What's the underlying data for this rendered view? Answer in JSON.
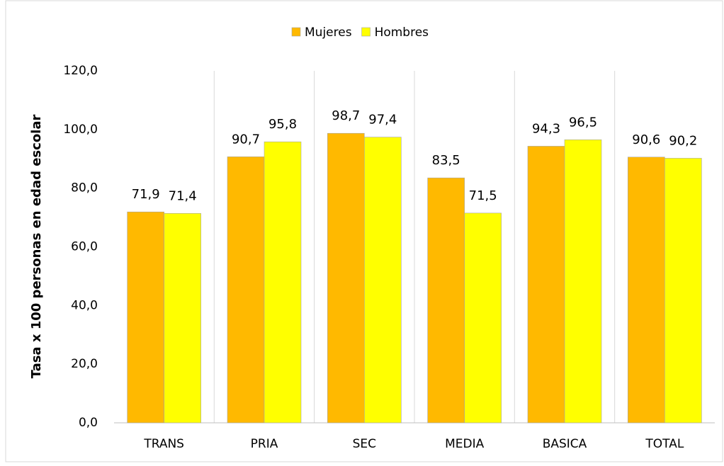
{
  "chart_data": {
    "type": "bar",
    "y_label": "Tasa x 100 personas en edad escolar",
    "categories": [
      "TRANS",
      "PRIA",
      "SEC",
      "MEDIA",
      "BASICA",
      "TOTAL"
    ],
    "series": [
      {
        "name": "Mujeres",
        "color": "#FFB900",
        "values": [
          71.9,
          90.7,
          98.7,
          83.5,
          94.3,
          90.6
        ],
        "value_labels": [
          "71,9",
          "90,7",
          "98,7",
          "83,5",
          "94,3",
          "90,6"
        ]
      },
      {
        "name": "Hombres",
        "color": "#FFFF00",
        "values": [
          71.4,
          95.8,
          97.4,
          71.5,
          96.5,
          90.2
        ],
        "value_labels": [
          "71,4",
          "95,8",
          "97,4",
          "71,5",
          "96,5",
          "90,2"
        ]
      }
    ],
    "ylim": [
      0,
      120
    ],
    "yticks": [
      {
        "value": 0,
        "label": "0,0"
      },
      {
        "value": 20,
        "label": "20,0"
      },
      {
        "value": 40,
        "label": "40,0"
      },
      {
        "value": 60,
        "label": "60,0"
      },
      {
        "value": 80,
        "label": "80,0"
      },
      {
        "value": 100,
        "label": "100,0"
      },
      {
        "value": 120,
        "label": "120,0"
      }
    ],
    "legend": "top",
    "grid": false
  }
}
